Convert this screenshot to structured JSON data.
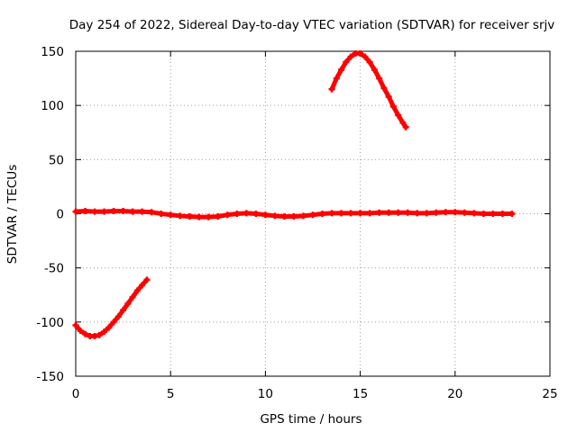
{
  "chart_data": {
    "type": "scatter",
    "title": "Day 254 of 2022, Sidereal Day-to-day VTEC variation (SDTVAR) for receiver srjv",
    "xlabel": "GPS time / hours",
    "ylabel": "SDTVAR / TECUs",
    "xlim": [
      0,
      25
    ],
    "ylim": [
      -150,
      150
    ],
    "xticks": [
      0,
      5,
      10,
      15,
      20,
      25
    ],
    "yticks": [
      -150,
      -100,
      -50,
      0,
      50,
      100,
      150
    ],
    "grid": true,
    "series_color": "#ff0000",
    "series": [
      {
        "name": "SDTVAR near zero",
        "x": [
          0,
          0.5,
          1,
          1.5,
          2,
          2.5,
          3,
          3.5,
          4,
          4.5,
          5,
          5.5,
          6,
          6.5,
          7,
          7.5,
          8,
          8.5,
          9,
          9.5,
          10,
          10.5,
          11,
          11.5,
          12,
          12.5,
          13,
          13.5,
          14,
          14.5,
          15,
          15.5,
          16,
          16.5,
          17,
          17.5,
          18,
          18.5,
          19,
          19.5,
          20,
          20.5,
          21,
          21.5,
          22,
          22.5,
          23
        ],
        "y": [
          2,
          2.5,
          2,
          2,
          2.5,
          2.5,
          2,
          2,
          1.5,
          0,
          -1,
          -2,
          -2.5,
          -3,
          -3,
          -2.5,
          -1,
          0,
          0.5,
          0,
          -1,
          -2,
          -2.5,
          -2.5,
          -2,
          -1,
          0,
          0.5,
          0.5,
          0.5,
          0.5,
          0.5,
          1,
          1,
          1,
          1,
          0.5,
          0.5,
          1,
          1.5,
          1.5,
          1,
          0.5,
          0,
          0,
          0,
          0
        ]
      },
      {
        "name": "early arc",
        "x": [
          0,
          0.25,
          0.5,
          0.75,
          1,
          1.25,
          1.5,
          1.75,
          2,
          2.25,
          2.5,
          2.75,
          3,
          3.25,
          3.5,
          3.75
        ],
        "y": [
          -103,
          -108,
          -111,
          -113,
          -113,
          -112,
          -109,
          -105,
          -100,
          -95,
          -89,
          -83,
          -77,
          -71,
          -66,
          -61
        ]
      },
      {
        "name": "late arc",
        "x": [
          13.5,
          13.75,
          14,
          14.25,
          14.5,
          14.75,
          15,
          15.25,
          15.5,
          15.75,
          16,
          16.25,
          16.5,
          16.75,
          17,
          17.25,
          17.4
        ],
        "y": [
          115,
          125,
          133,
          140,
          145,
          148,
          148,
          145,
          140,
          133,
          125,
          116,
          108,
          99,
          91,
          84,
          80
        ]
      }
    ]
  }
}
